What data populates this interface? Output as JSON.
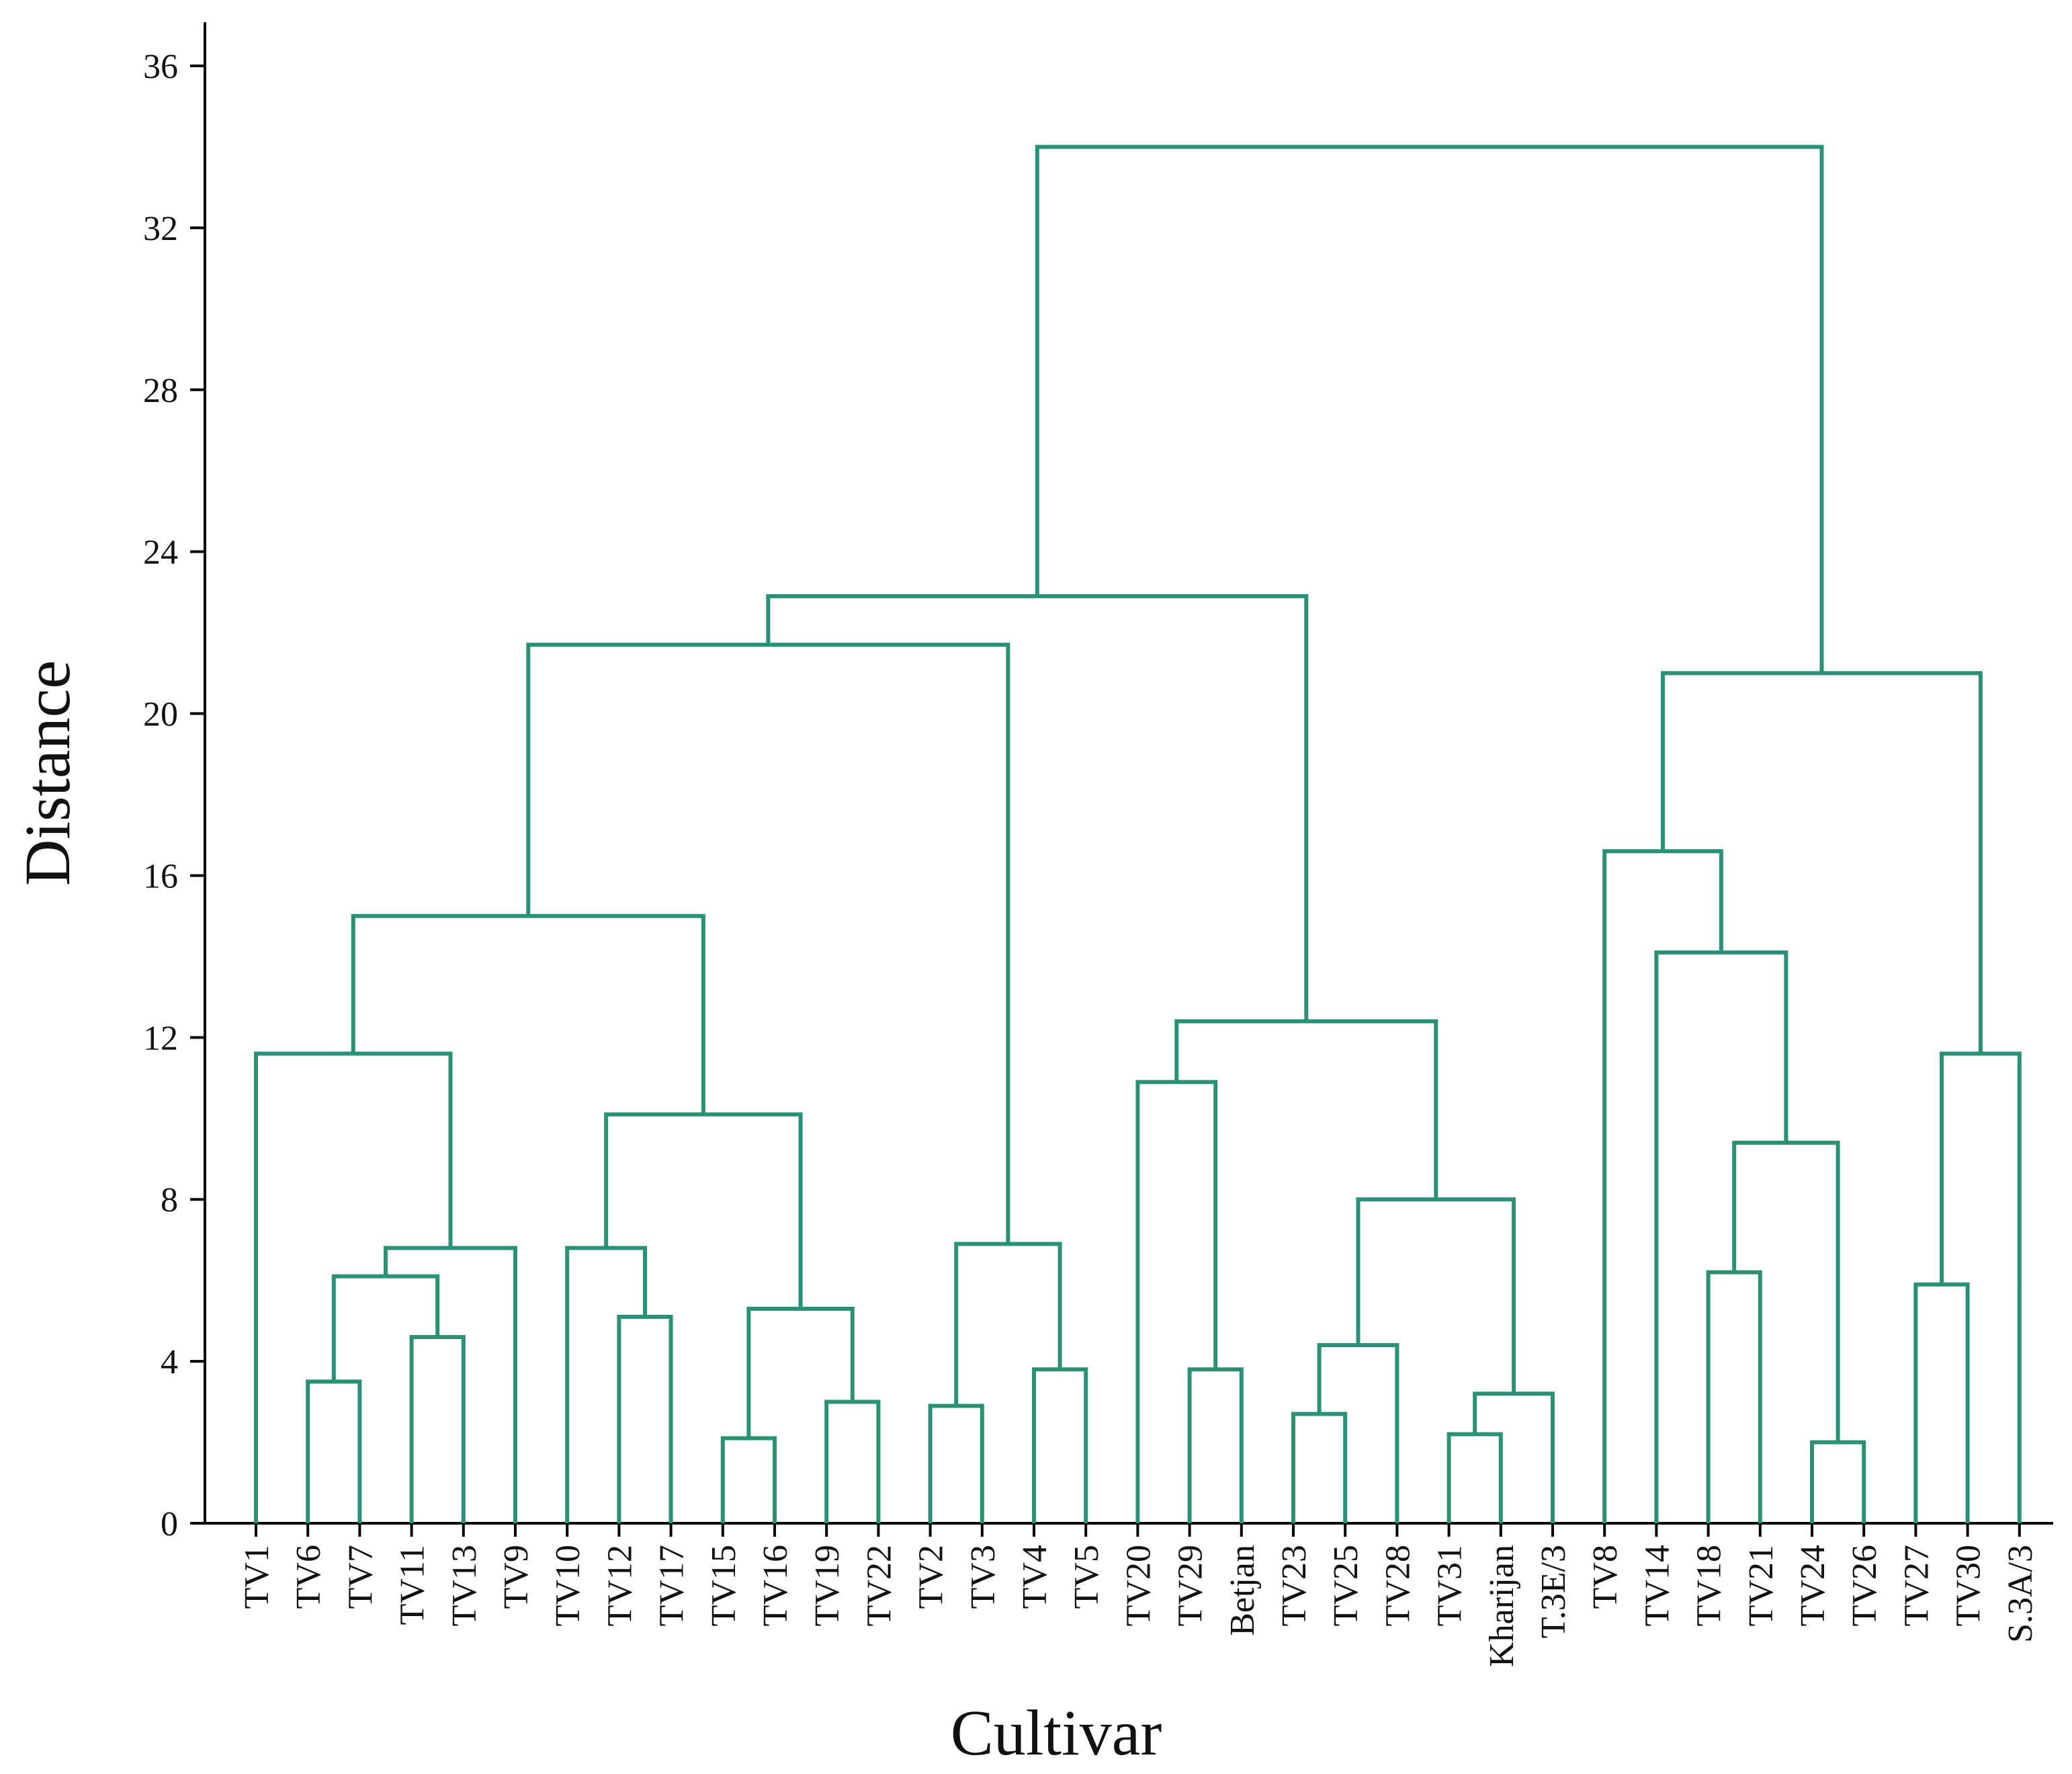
{
  "chart_data": {
    "type": "dendrogram",
    "xlabel": "Cultivar",
    "ylabel": "Distance",
    "ylim": [
      0,
      37
    ],
    "yticks": [
      0,
      4,
      8,
      12,
      16,
      20,
      24,
      28,
      32,
      36
    ],
    "line_color": "#2a9175",
    "leaves": [
      "TV1",
      "TV6",
      "TV7",
      "TV11",
      "TV13",
      "TV9",
      "TV10",
      "TV12",
      "TV17",
      "TV15",
      "TV16",
      "TV19",
      "TV22",
      "TV2",
      "TV3",
      "TV4",
      "TV5",
      "TV20",
      "TV29",
      "Betjan",
      "TV23",
      "TV25",
      "TV28",
      "TV31",
      "Kharijan",
      "T.3E/3",
      "TV8",
      "TV14",
      "TV18",
      "TV21",
      "TV24",
      "TV26",
      "TV27",
      "TV30",
      "S.3A/3"
    ],
    "merges": [
      {
        "id": "m1",
        "left": "TV6",
        "right": "TV7",
        "height": 3.5
      },
      {
        "id": "m2",
        "left": "TV11",
        "right": "TV13",
        "height": 4.6
      },
      {
        "id": "m3",
        "left": "m1",
        "right": "m2",
        "height": 6.1
      },
      {
        "id": "m4",
        "left": "m3",
        "right": "TV9",
        "height": 6.8
      },
      {
        "id": "m5",
        "left": "TV1",
        "right": "m4",
        "height": 11.6
      },
      {
        "id": "m6",
        "left": "TV12",
        "right": "TV17",
        "height": 5.1
      },
      {
        "id": "m7",
        "left": "TV10",
        "right": "m6",
        "height": 6.8
      },
      {
        "id": "m8",
        "left": "TV15",
        "right": "TV16",
        "height": 2.1
      },
      {
        "id": "m9",
        "left": "TV19",
        "right": "TV22",
        "height": 3.0
      },
      {
        "id": "m10",
        "left": "m8",
        "right": "m9",
        "height": 5.3
      },
      {
        "id": "m11",
        "left": "m7",
        "right": "m10",
        "height": 10.1
      },
      {
        "id": "m12",
        "left": "m5",
        "right": "m11",
        "height": 15.0
      },
      {
        "id": "m13",
        "left": "TV2",
        "right": "TV3",
        "height": 2.9
      },
      {
        "id": "m14",
        "left": "TV4",
        "right": "TV5",
        "height": 3.8
      },
      {
        "id": "m15",
        "left": "m13",
        "right": "m14",
        "height": 6.9
      },
      {
        "id": "m16",
        "left": "m12",
        "right": "m15",
        "height": 21.7
      },
      {
        "id": "m17",
        "left": "TV29",
        "right": "Betjan",
        "height": 3.8
      },
      {
        "id": "m18",
        "left": "TV20",
        "right": "m17",
        "height": 10.9
      },
      {
        "id": "m19",
        "left": "TV23",
        "right": "TV25",
        "height": 2.7
      },
      {
        "id": "m20",
        "left": "m19",
        "right": "TV28",
        "height": 4.4
      },
      {
        "id": "m21",
        "left": "TV31",
        "right": "Kharijan",
        "height": 2.2
      },
      {
        "id": "m22",
        "left": "m21",
        "right": "T.3E/3",
        "height": 3.2
      },
      {
        "id": "m23",
        "left": "m20",
        "right": "m22",
        "height": 8.0
      },
      {
        "id": "m24",
        "left": "m18",
        "right": "m23",
        "height": 12.4
      },
      {
        "id": "m25",
        "left": "m16",
        "right": "m24",
        "height": 22.9
      },
      {
        "id": "m26",
        "left": "TV18",
        "right": "TV21",
        "height": 6.2
      },
      {
        "id": "m27",
        "left": "TV24",
        "right": "TV26",
        "height": 2.0
      },
      {
        "id": "m28",
        "left": "m26",
        "right": "m27",
        "height": 9.4
      },
      {
        "id": "m29",
        "left": "TV14",
        "right": "m28",
        "height": 14.1
      },
      {
        "id": "m30",
        "left": "TV8",
        "right": "m29",
        "height": 16.6
      },
      {
        "id": "m31",
        "left": "TV27",
        "right": "TV30",
        "height": 5.9
      },
      {
        "id": "m32",
        "left": "m31",
        "right": "S.3A/3",
        "height": 11.6
      },
      {
        "id": "m33",
        "left": "m30",
        "right": "m32",
        "height": 21.0
      },
      {
        "id": "m34",
        "left": "m25",
        "right": "m33",
        "height": 34.0
      }
    ]
  }
}
